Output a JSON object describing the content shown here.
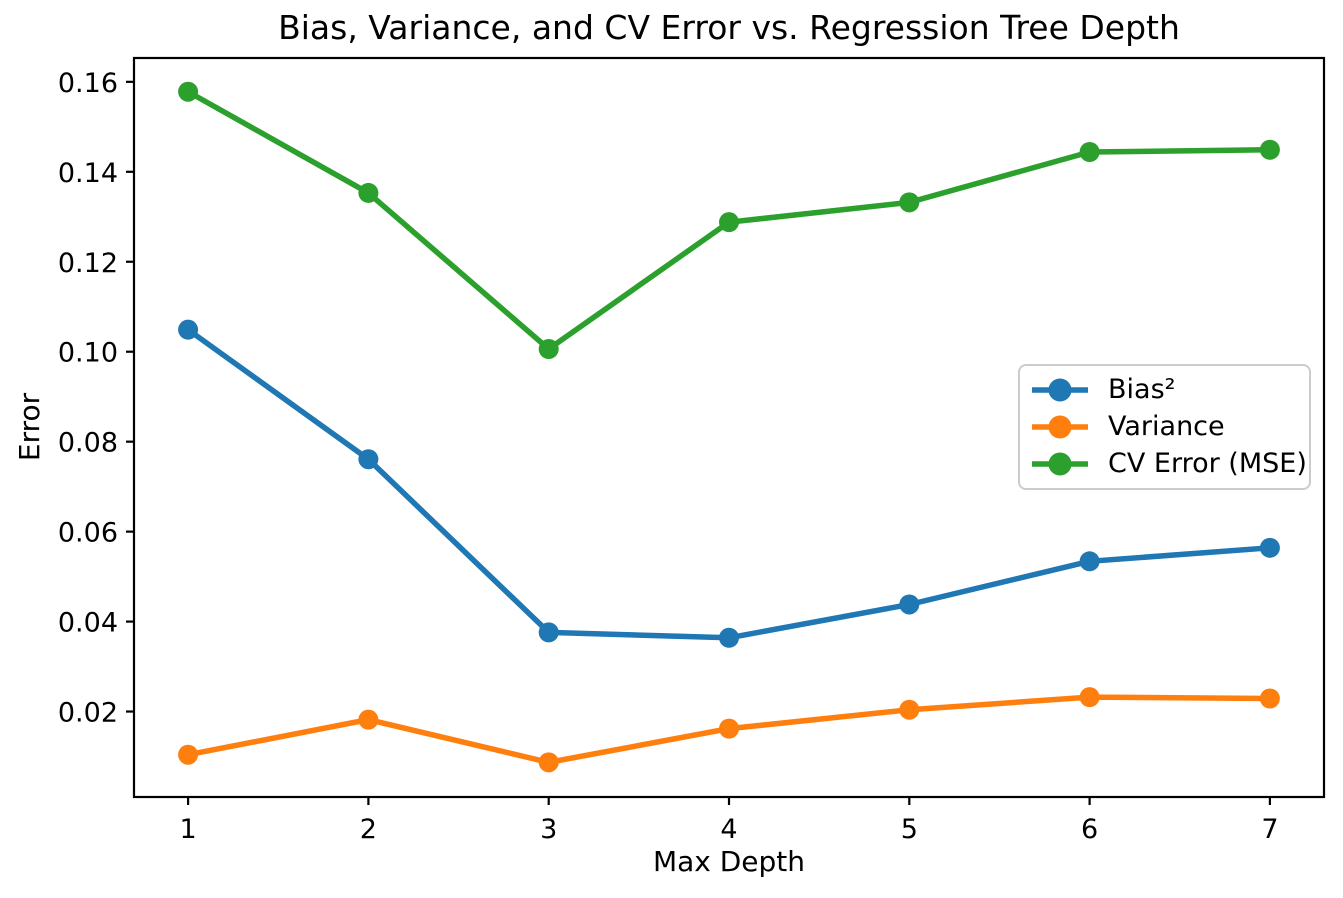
{
  "chart_data": {
    "type": "line",
    "title": "Bias, Variance, and CV Error vs. Regression Tree Depth",
    "xlabel": "Max Depth",
    "ylabel": "Error",
    "x": [
      1,
      2,
      3,
      4,
      5,
      6,
      7
    ],
    "x_tick_labels": [
      "1",
      "2",
      "3",
      "4",
      "5",
      "6",
      "7"
    ],
    "y_ticks": [
      0.02,
      0.04,
      0.06,
      0.08,
      0.1,
      0.12,
      0.14,
      0.16
    ],
    "y_tick_labels": [
      "0.02",
      "0.04",
      "0.06",
      "0.08",
      "0.10",
      "0.12",
      "0.14",
      "0.16"
    ],
    "xlim": [
      0.7,
      7.3
    ],
    "ylim": [
      0.001,
      0.1653
    ],
    "grid": false,
    "legend_position": "center-right-inside",
    "series": [
      {
        "name": "Bias²",
        "color": "#1f77b4",
        "marker": "circle",
        "values": [
          0.1049,
          0.0761,
          0.0376,
          0.0364,
          0.0438,
          0.0534,
          0.0564
        ]
      },
      {
        "name": "Variance",
        "color": "#ff7f0e",
        "marker": "circle",
        "values": [
          0.0104,
          0.0182,
          0.0087,
          0.0162,
          0.0204,
          0.0232,
          0.0229
        ]
      },
      {
        "name": "CV Error (MSE)",
        "color": "#2ca02c",
        "marker": "circle",
        "values": [
          0.1578,
          0.1353,
          0.1006,
          0.1288,
          0.1332,
          0.1444,
          0.1449
        ]
      }
    ],
    "colors": {
      "spine": "#000000",
      "text": "#000000",
      "legend_border": "#cccccc",
      "background": "#ffffff"
    }
  }
}
